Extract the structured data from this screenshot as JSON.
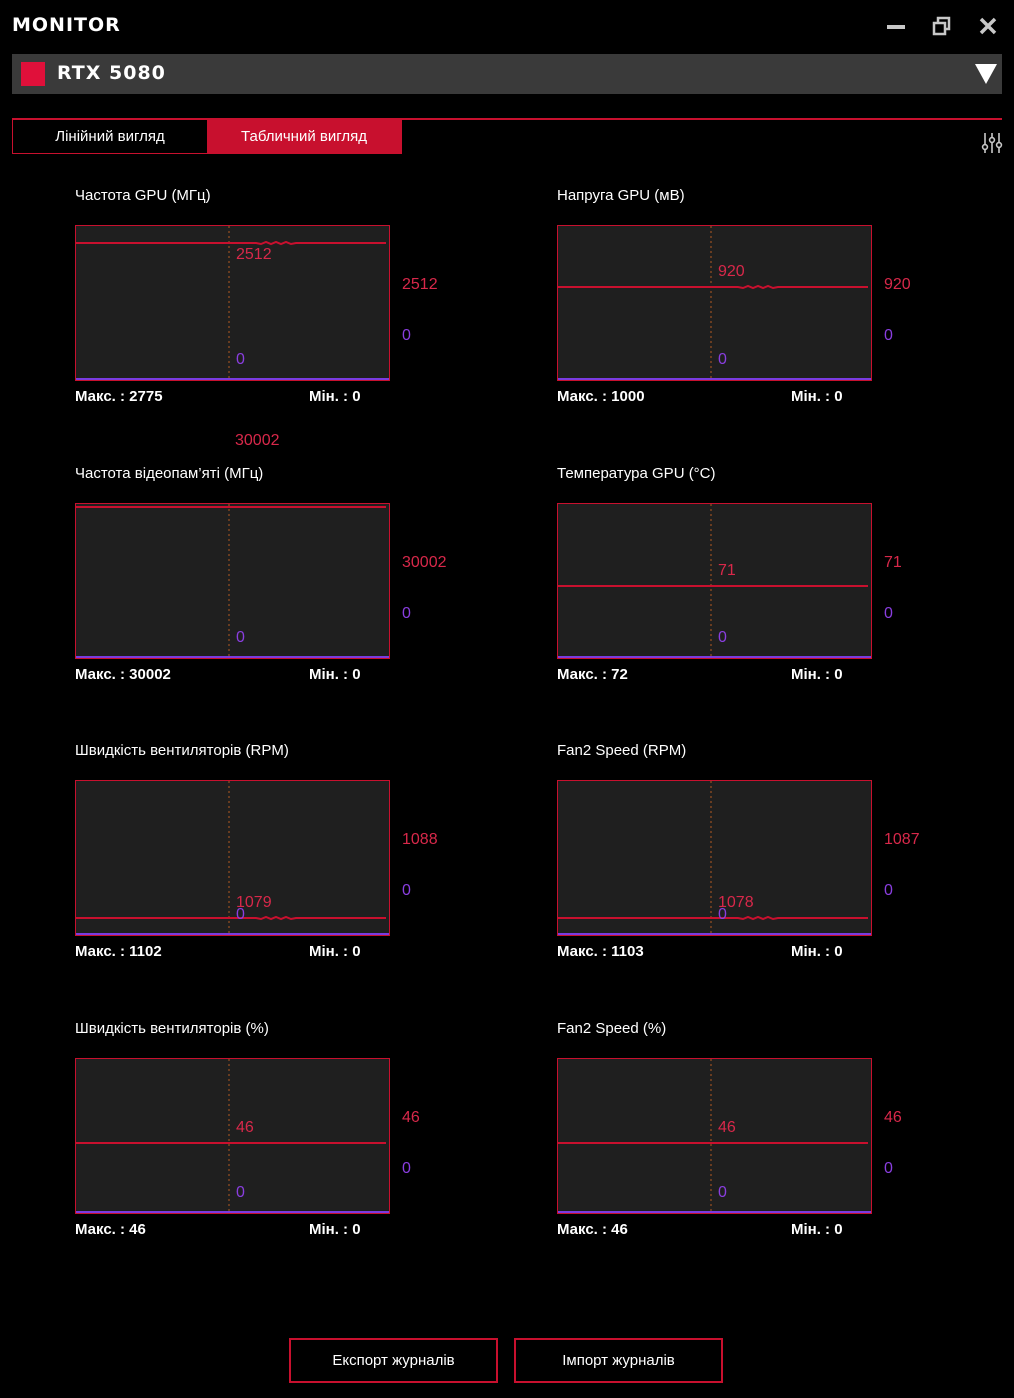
{
  "app": {
    "title": "MONITOR"
  },
  "window_controls": [
    "minimize-icon",
    "restore-icon",
    "close-icon"
  ],
  "device": {
    "name": "RTX 5080",
    "color": "#e0103a"
  },
  "tabs": [
    {
      "label": "Лінійний вигляд",
      "active": false
    },
    {
      "label": "Табличний вигляд",
      "active": true
    }
  ],
  "colors": {
    "accent": "#c8102e",
    "value_red": "#d8284a",
    "value_purple": "#8a3ee0",
    "chart_bg": "#1f1f1f"
  },
  "charts": [
    {
      "title": "Частота GPU (МГц)",
      "current": "2512",
      "zero": "0",
      "side_max": "2512",
      "side_min": "0",
      "max_label": "Макс. : 2775",
      "min_label": "Мін. : 0",
      "scale_max": 2775,
      "level": 2512,
      "wiggle": true
    },
    {
      "title": "Напруга GPU (мВ)",
      "current": "920",
      "zero": "0",
      "side_max": "920",
      "side_min": "0",
      "max_label": "Макс. : 1000",
      "min_label": "Мін. : 0",
      "scale_max": 1500,
      "level": 920,
      "wiggle": true
    },
    {
      "title": "Частота відеопам’яті (МГц)",
      "current": "30002",
      "zero": "0",
      "side_max": "30002",
      "side_min": "0",
      "max_label": "Макс. : 30002",
      "min_label": "Мін. : 0",
      "scale_max": 30002,
      "level": 30002,
      "wiggle": false,
      "current_outside": true
    },
    {
      "title": "Температура GPU (°C)",
      "current": "71",
      "zero": "0",
      "side_max": "71",
      "side_min": "0",
      "max_label": "Макс. : 72",
      "min_label": "Мін. : 0",
      "scale_max": 150,
      "level": 71,
      "wiggle": false
    },
    {
      "title": "Швидкість вентиляторів (RPM)",
      "current": "1079",
      "zero": "0",
      "side_max": "1088",
      "side_min": "0",
      "max_label": "Макс. : 1102",
      "min_label": "Мін. : 0",
      "scale_max": 10000,
      "level": 1079,
      "wiggle": true
    },
    {
      "title": "Fan2 Speed (RPM)",
      "current": "1078",
      "zero": "0",
      "side_max": "1087",
      "side_min": "0",
      "max_label": "Макс. : 1103",
      "min_label": "Мін. : 0",
      "scale_max": 10000,
      "level": 1078,
      "wiggle": true
    },
    {
      "title": "Швидкість вентиляторів (%)",
      "current": "46",
      "zero": "0",
      "side_max": "46",
      "side_min": "0",
      "max_label": "Макс. : 46",
      "min_label": "Мін. : 0",
      "scale_max": 100,
      "level": 46,
      "wiggle": false
    },
    {
      "title": "Fan2 Speed (%)",
      "current": "46",
      "zero": "0",
      "side_max": "46",
      "side_min": "0",
      "max_label": "Макс. : 46",
      "min_label": "Мін. : 0",
      "scale_max": 100,
      "level": 46,
      "wiggle": false
    }
  ],
  "buttons": {
    "export_label": "Експорт журналів",
    "import_label": "Імпорт журналів"
  }
}
